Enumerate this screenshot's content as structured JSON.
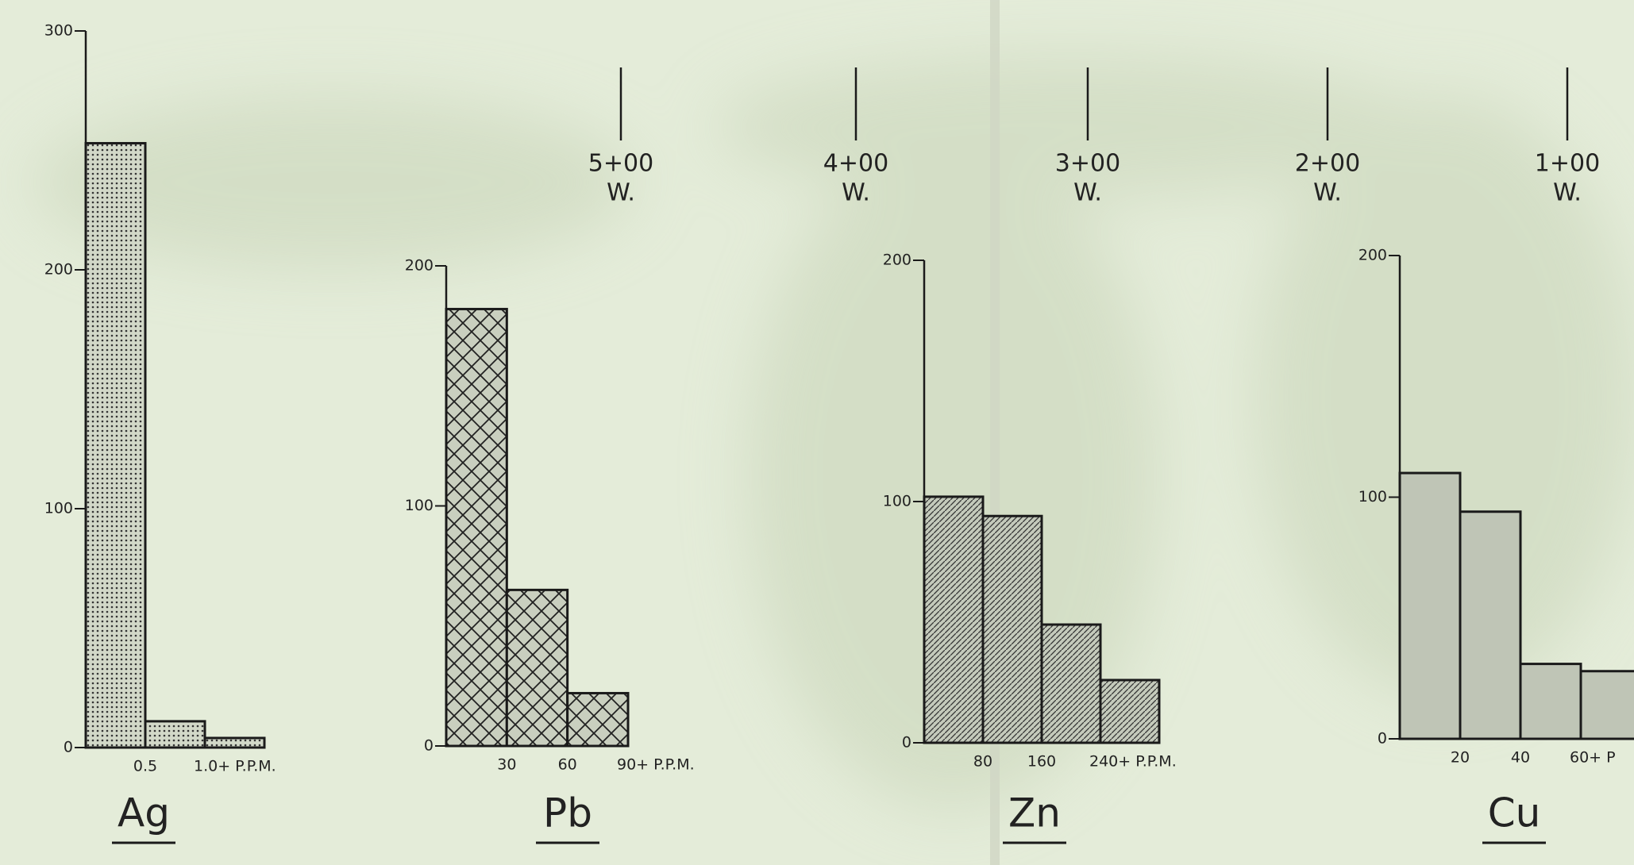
{
  "chart_data": [
    {
      "type": "histogram",
      "title": "Ag",
      "bins": [
        0,
        0.5,
        1.0,
        1.5
      ],
      "values": [
        253,
        11,
        4
      ],
      "xlim": [
        0,
        1.5
      ],
      "xticks": [
        0.5,
        {
          "value": 1.0,
          "label": "1.0+ P.P.M."
        }
      ],
      "ylim": [
        0,
        300
      ],
      "yticks": [
        0,
        100,
        200,
        300
      ],
      "pattern": "dots",
      "color": "#c9cfbf"
    },
    {
      "type": "histogram",
      "title": "Pb",
      "bins": [
        0,
        30,
        60,
        90
      ],
      "values": [
        182,
        65,
        22
      ],
      "xlim": [
        0,
        90
      ],
      "xticks": [
        30,
        60,
        {
          "value": 90,
          "label": "90+ P.P.M."
        }
      ],
      "ylim": [
        0,
        200
      ],
      "yticks": [
        0,
        100,
        200
      ],
      "pattern": "crosshatch",
      "color": "#c9cfbf"
    },
    {
      "type": "histogram",
      "title": "Zn",
      "bins": [
        0,
        80,
        160,
        240,
        320
      ],
      "values": [
        102,
        94,
        49,
        26
      ],
      "xlim": [
        0,
        320
      ],
      "xticks": [
        80,
        160,
        {
          "value": 240,
          "label": "240+ P.P.M."
        }
      ],
      "ylim": [
        0,
        200
      ],
      "yticks": [
        0,
        100,
        200
      ],
      "pattern": "diagonal",
      "color": "#c4cabb"
    },
    {
      "type": "histogram",
      "title": "Cu",
      "bins": [
        0,
        20,
        40,
        60,
        80
      ],
      "values": [
        110,
        94,
        31,
        28
      ],
      "xlim": [
        0,
        80
      ],
      "xticks": [
        20,
        40,
        {
          "value": 60,
          "label": "60+ P"
        }
      ],
      "ylim": [
        0,
        200
      ],
      "yticks": [
        0,
        100,
        200
      ],
      "pattern": "solid",
      "color": "#bfc5b6"
    }
  ],
  "stations": [
    {
      "label": "5+00",
      "sub": "W."
    },
    {
      "label": "4+00",
      "sub": "W."
    },
    {
      "label": "3+00",
      "sub": "W."
    },
    {
      "label": "2+00",
      "sub": "W."
    },
    {
      "label": "1+00",
      "sub": "W."
    }
  ]
}
